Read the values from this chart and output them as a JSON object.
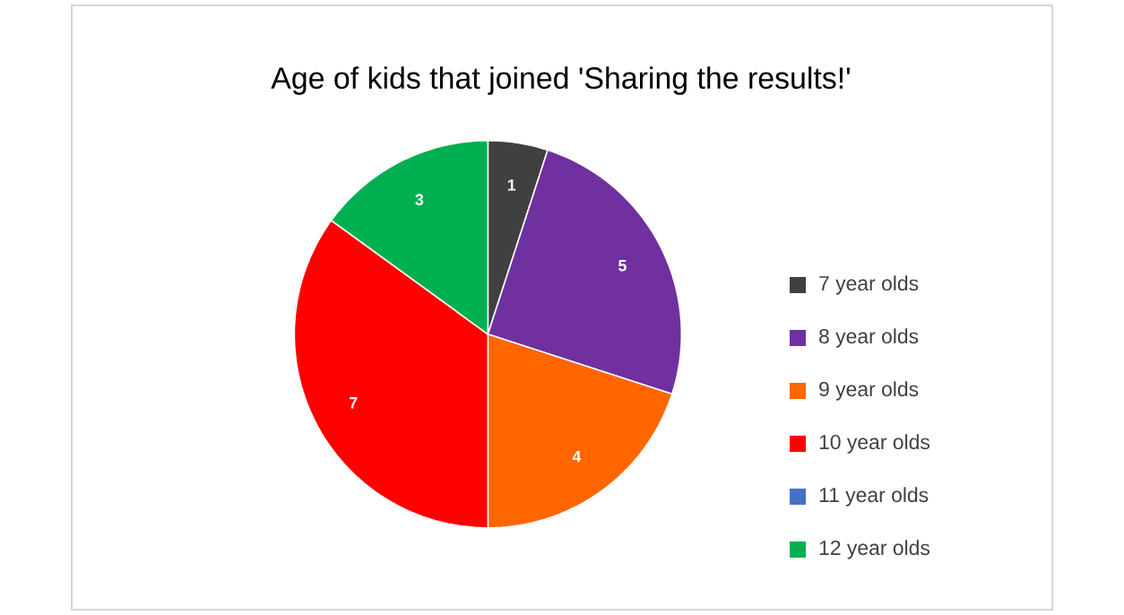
{
  "chart_data": {
    "type": "pie",
    "title": "Age of kids that joined 'Sharing the results!'",
    "categories": [
      "7 year olds",
      "8 year olds",
      "9 year olds",
      "10 year olds",
      "11 year olds",
      "12 year olds"
    ],
    "values": [
      1,
      5,
      4,
      7,
      0,
      3
    ],
    "colors": [
      "#404040",
      "#7030a0",
      "#ff6600",
      "#ff0000",
      "#4472c4",
      "#00b050"
    ],
    "value_labels": [
      "1",
      "5",
      "4",
      "7",
      null,
      "3"
    ],
    "legend": "right"
  }
}
